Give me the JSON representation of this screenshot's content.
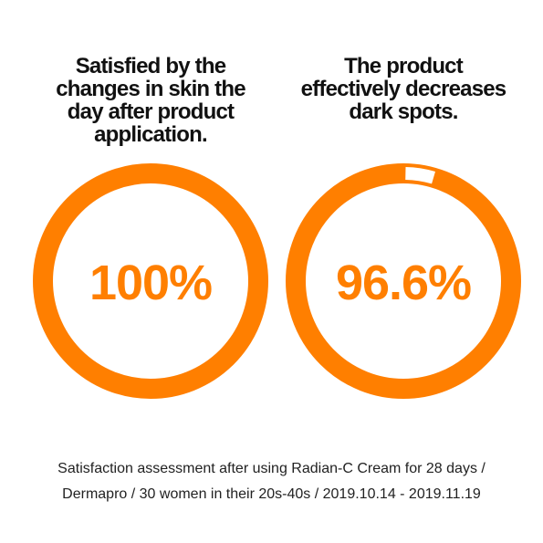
{
  "chart_data": [
    {
      "type": "pie",
      "title": "Satisfied by the changes in skin the day after product application.",
      "title_lines": [
        "Satisfied by the",
        "changes in skin the",
        "day after product",
        "application."
      ],
      "value": 100,
      "value_label": "100%",
      "max": 100
    },
    {
      "type": "pie",
      "title": "The product effectively decreases dark spots.",
      "title_lines": [
        "The product",
        "effectively decreases",
        "dark spots."
      ],
      "value": 96.6,
      "value_label": "96.6%",
      "max": 100
    }
  ],
  "footnote": {
    "line1": "Satisfaction assessment after using Radian-C Cream for 28 days /",
    "line2": "Dermapro / 30 women in their 20s-40s / 2019.10.14 - 2019.11.19"
  },
  "colors": {
    "accent": "#ff7f00",
    "ring_track": "#ffffff",
    "title": "#111111",
    "footnote": "#222222"
  }
}
